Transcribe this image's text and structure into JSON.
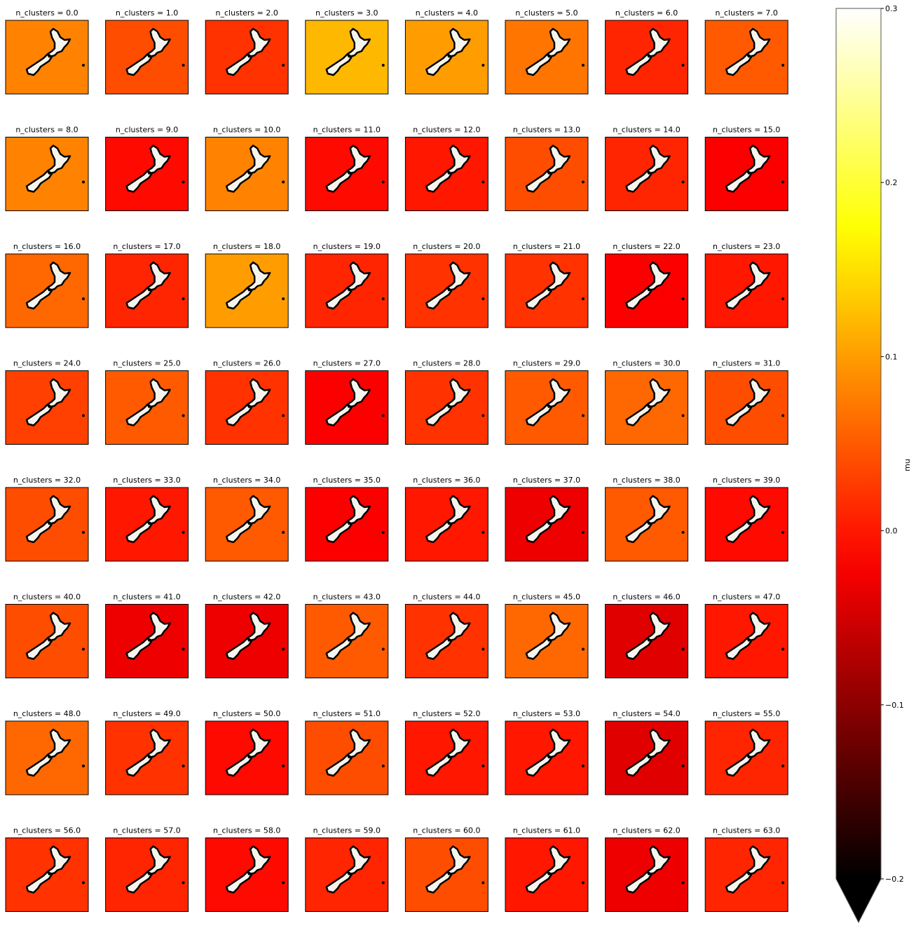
{
  "chart_data": {
    "type": "facet-map",
    "categories": [
      "n_clusters = 0.0",
      "n_clusters = 1.0",
      "n_clusters = 2.0",
      "n_clusters = 3.0",
      "n_clusters = 4.0",
      "n_clusters = 5.0",
      "n_clusters = 6.0",
      "n_clusters = 7.0",
      "n_clusters = 8.0",
      "n_clusters = 9.0",
      "n_clusters = 10.0",
      "n_clusters = 11.0",
      "n_clusters = 12.0",
      "n_clusters = 13.0",
      "n_clusters = 14.0",
      "n_clusters = 15.0",
      "n_clusters = 16.0",
      "n_clusters = 17.0",
      "n_clusters = 18.0",
      "n_clusters = 19.0",
      "n_clusters = 20.0",
      "n_clusters = 21.0",
      "n_clusters = 22.0",
      "n_clusters = 23.0",
      "n_clusters = 24.0",
      "n_clusters = 25.0",
      "n_clusters = 26.0",
      "n_clusters = 27.0",
      "n_clusters = 28.0",
      "n_clusters = 29.0",
      "n_clusters = 30.0",
      "n_clusters = 31.0",
      "n_clusters = 32.0",
      "n_clusters = 33.0",
      "n_clusters = 34.0",
      "n_clusters = 35.0",
      "n_clusters = 36.0",
      "n_clusters = 37.0",
      "n_clusters = 38.0",
      "n_clusters = 39.0",
      "n_clusters = 40.0",
      "n_clusters = 41.0",
      "n_clusters = 42.0",
      "n_clusters = 43.0",
      "n_clusters = 44.0",
      "n_clusters = 45.0",
      "n_clusters = 46.0",
      "n_clusters = 47.0",
      "n_clusters = 48.0",
      "n_clusters = 49.0",
      "n_clusters = 50.0",
      "n_clusters = 51.0",
      "n_clusters = 52.0",
      "n_clusters = 53.0",
      "n_clusters = 54.0",
      "n_clusters = 55.0",
      "n_clusters = 56.0",
      "n_clusters = 57.0",
      "n_clusters = 58.0",
      "n_clusters = 59.0",
      "n_clusters = 60.0",
      "n_clusters = 61.0",
      "n_clusters = 62.0",
      "n_clusters = 63.0"
    ],
    "values": [
      0.08,
      0.04,
      0.02,
      0.12,
      0.1,
      0.07,
      0.01,
      0.05,
      0.08,
      -0.01,
      0.08,
      -0.01,
      0,
      0.04,
      0.01,
      -0.02,
      0.06,
      0.01,
      0.1,
      0.01,
      0.02,
      0.02,
      -0.02,
      0,
      0.03,
      0.05,
      0.02,
      -0.02,
      0.02,
      0.05,
      0.06,
      0.04,
      0.04,
      0,
      0.05,
      -0.02,
      0,
      -0.03,
      0.05,
      -0.01,
      0.04,
      -0.03,
      -0.03,
      0.05,
      0.02,
      0.06,
      -0.04,
      0,
      0.06,
      0.02,
      -0.01,
      0.04,
      0,
      0,
      -0.04,
      0.01,
      0.02,
      0.01,
      -0.01,
      0.01,
      0.04,
      0,
      -0.03,
      0.01
    ],
    "colormap": "hot",
    "columns": 8,
    "ylim": [
      -0.2,
      0.3
    ],
    "yticks": [
      {
        "value": -0.2,
        "label": "−0.2"
      },
      {
        "value": -0.1,
        "label": "−0.1"
      },
      {
        "value": 0,
        "label": "0.0"
      },
      0.1,
      0.2,
      0.3
    ],
    "ylabel": "mu",
    "extend": "min"
  }
}
